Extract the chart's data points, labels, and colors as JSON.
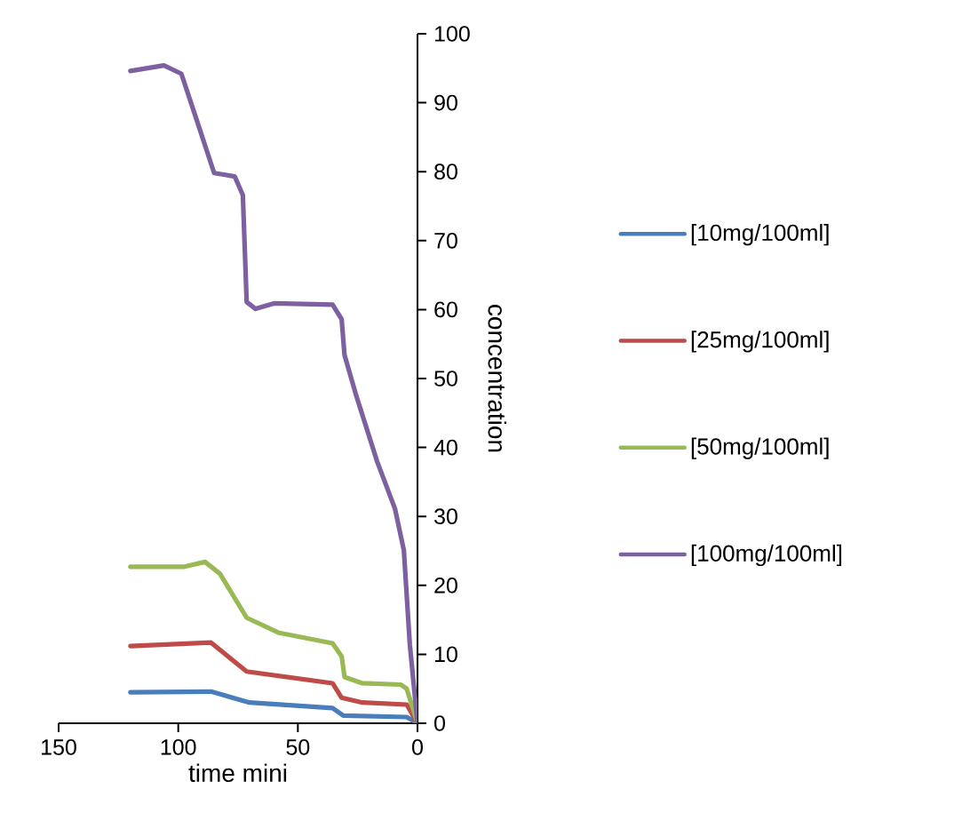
{
  "chart_data": {
    "type": "line",
    "xlabel": "time mini",
    "ylabel": "concentration",
    "xlim": [
      150,
      0
    ],
    "xticks": [
      150,
      100,
      50,
      0
    ],
    "ylim": [
      0,
      100
    ],
    "yticks": [
      0,
      10,
      20,
      30,
      40,
      50,
      60,
      70,
      80,
      90,
      100
    ],
    "legend": "right",
    "grid": false,
    "marker": "none",
    "line_style": "solid",
    "series": [
      {
        "name": "[10mg/100ml]",
        "color": "#4a7ebb",
        "x": [
          120,
          86.3,
          70.2,
          35.5,
          31,
          4.5,
          0
        ],
        "values": [
          4.5,
          4.6,
          3,
          2.2,
          1.1,
          0.9,
          0
        ]
      },
      {
        "name": "[25mg/100ml]",
        "color": "#be4b48",
        "x": [
          120,
          86.3,
          71.4,
          35.5,
          31.7,
          23,
          4.5,
          0
        ],
        "values": [
          11.2,
          11.7,
          7.5,
          5.8,
          3.7,
          3,
          2.7,
          0
        ]
      },
      {
        "name": "[50mg/100ml]",
        "color": "#98b954",
        "x": [
          120,
          97.4,
          88.8,
          82.6,
          71.4,
          57.8,
          35.5,
          31.7,
          30.5,
          23,
          6.9,
          4.5,
          0
        ],
        "values": [
          22.7,
          22.7,
          23.4,
          21.7,
          15.3,
          13.1,
          11.6,
          9.7,
          6.7,
          5.8,
          5.6,
          5,
          0
        ]
      },
      {
        "name": "[100mg/100ml]",
        "color": "#7d60a0",
        "x": [
          120,
          106,
          98.7,
          92.5,
          85,
          76.4,
          73,
          71.4,
          67.7,
          60,
          35.5,
          31.7,
          30.5,
          25.5,
          16.9,
          9.4,
          5.7,
          3.2,
          0
        ],
        "values": [
          94.6,
          95.4,
          94.2,
          87.7,
          79.8,
          79.3,
          76.6,
          61.1,
          60.1,
          60.9,
          60.7,
          58.6,
          53.4,
          47.4,
          38,
          31.1,
          25.1,
          11.4,
          0
        ]
      }
    ]
  }
}
